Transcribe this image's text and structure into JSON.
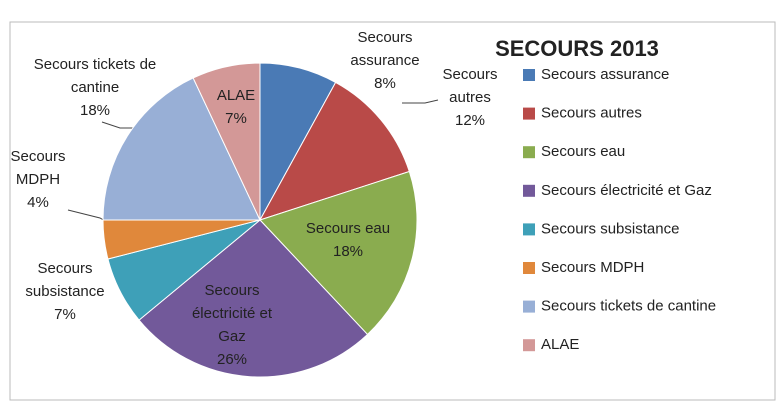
{
  "chart_data": {
    "type": "pie",
    "title": "SECOURS 2013",
    "categories": [
      "Secours assurance",
      "Secours autres",
      "Secours eau",
      "Secours électricité et Gaz",
      "Secours subsistance",
      "Secours MDPH",
      "Secours tickets de cantine",
      "ALAE"
    ],
    "values": [
      8,
      12,
      18,
      26,
      7,
      4,
      18,
      7
    ],
    "value_labels": [
      "8%",
      "12%",
      "18%",
      "26%",
      "7%",
      "4%",
      "18%",
      "7%"
    ],
    "colors": [
      "#4a7ab5",
      "#b94a48",
      "#8aac4f",
      "#72599a",
      "#3ea0b8",
      "#e0883b",
      "#98afd6",
      "#d39897"
    ],
    "legend": "right"
  }
}
